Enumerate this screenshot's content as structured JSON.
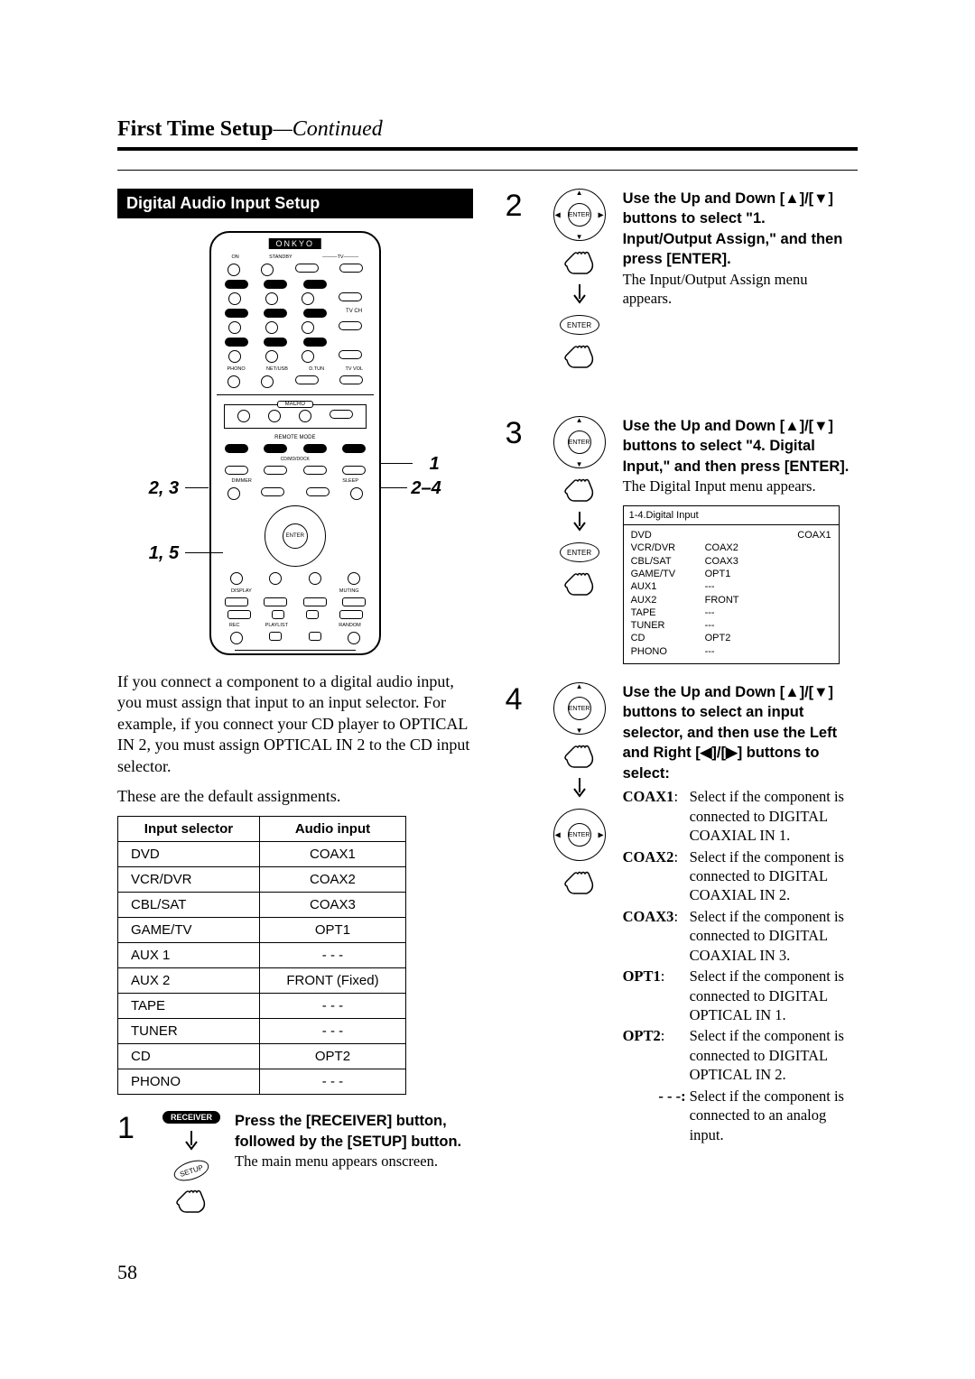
{
  "header": {
    "title": "First Time Setup",
    "continued": "—Continued"
  },
  "section_title": "Digital Audio Input Setup",
  "remote": {
    "brand": "ONKYO",
    "callouts": {
      "a": "1",
      "b": "2, 3",
      "c": "2–4",
      "d": "1, 5"
    }
  },
  "intro_text": "If you connect a component to a digital audio input, you must assign that input to an input selector. For example, if you connect your CD player to OPTICAL IN 2, you must assign OPTICAL IN 2 to the CD input selector.",
  "defaults_text": "These are the default assignments.",
  "assign_table": {
    "columns": [
      "Input selector",
      "Audio input"
    ],
    "rows": [
      [
        "DVD",
        "COAX1"
      ],
      [
        "VCR/DVR",
        "COAX2"
      ],
      [
        "CBL/SAT",
        "COAX3"
      ],
      [
        "GAME/TV",
        "OPT1"
      ],
      [
        "AUX 1",
        "- - -"
      ],
      [
        "AUX 2",
        "FRONT (Fixed)"
      ],
      [
        "TAPE",
        "- - -"
      ],
      [
        "TUNER",
        "- - -"
      ],
      [
        "CD",
        "OPT2"
      ],
      [
        "PHONO",
        "- - -"
      ]
    ]
  },
  "step1": {
    "num": "1",
    "bold": "Press the [RECEIVER] button, followed by the [SETUP] button.",
    "plain": "The main menu appears onscreen.",
    "btn_receiver": "RECEIVER",
    "btn_setup": "SETUP"
  },
  "step2": {
    "num": "2",
    "bold": "Use the Up and Down [▲]/[▼] buttons to select \"1. Input/Output Assign,\" and then press [ENTER].",
    "plain": "The Input/Output Assign menu appears.",
    "enter": "ENTER"
  },
  "step3": {
    "num": "3",
    "bold": "Use the Up and Down [▲]/[▼] buttons to select \"4. Digital Input,\" and then press [ENTER].",
    "plain": "The Digital Input menu appears.",
    "enter": "ENTER"
  },
  "menu": {
    "title": "1-4.Digital Input",
    "rows": [
      {
        "k": "DVD",
        "v": "",
        "r": "COAX1"
      },
      {
        "k": "VCR/DVR",
        "v": "COAX2",
        "r": ""
      },
      {
        "k": "CBL/SAT",
        "v": "COAX3",
        "r": ""
      },
      {
        "k": "GAME/TV",
        "v": "OPT1",
        "r": ""
      },
      {
        "k": "AUX1",
        "v": "---",
        "r": ""
      },
      {
        "k": "AUX2",
        "v": "FRONT",
        "r": ""
      },
      {
        "k": "TAPE",
        "v": "---",
        "r": ""
      },
      {
        "k": "TUNER",
        "v": "---",
        "r": ""
      },
      {
        "k": "CD",
        "v": "OPT2",
        "r": ""
      },
      {
        "k": "PHONO",
        "v": "---",
        "r": ""
      }
    ]
  },
  "step4": {
    "num": "4",
    "bold": "Use the Up and Down [▲]/[▼] buttons to select an input selector, and then use the Left and Right [◀]/[▶] buttons to select:",
    "enter": "ENTER",
    "defs": [
      {
        "k": "COAX1",
        "v": "Select if the component is connected to DIGITAL COAXIAL IN 1."
      },
      {
        "k": "COAX2",
        "v": "Select if the component is connected to DIGITAL COAXIAL IN 2."
      },
      {
        "k": "COAX3",
        "v": "Select if the component is connected to DIGITAL COAXIAL IN 3."
      },
      {
        "k": "OPT1",
        "v": "Select if the component is connected to DIGITAL OPTICAL IN 1."
      },
      {
        "k": "OPT2",
        "v": "Select if the component is connected to DIGITAL OPTICAL IN 2."
      },
      {
        "k": "- - -:",
        "v": "Select if the component is connected to an analog input."
      }
    ]
  },
  "page_number": "58"
}
